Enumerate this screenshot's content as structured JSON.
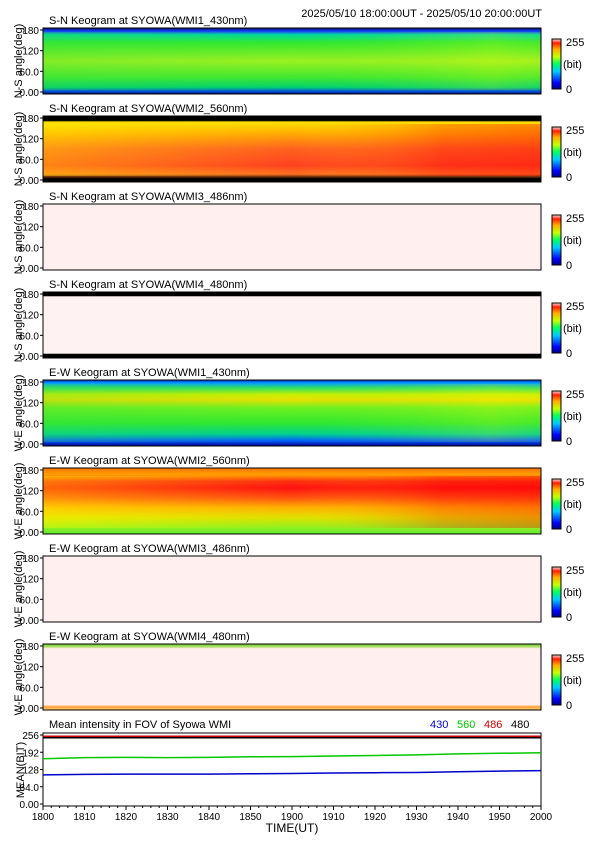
{
  "header": {
    "time_range": "2025/05/10 18:00:00UT - 2025/05/10 20:00:00UT"
  },
  "colorbar": {
    "max_label": "255",
    "unit_label": "(bit)",
    "min_label": "0"
  },
  "panels": [
    {
      "title": "S-N Keogram at SYOWA(WMI1_430nm)",
      "ylabel": "N-S angle(deg)",
      "ticks": [
        "180",
        "120",
        "60.0",
        "0.00"
      ],
      "variant": "g430"
    },
    {
      "title": "S-N Keogram at SYOWA(WMI2_560nm)",
      "ylabel": "N-S angle(deg)",
      "ticks": [
        "180",
        "120",
        "60.0",
        "0.00"
      ],
      "variant": "r560"
    },
    {
      "title": "S-N Keogram at SYOWA(WMI3_486nm)",
      "ylabel": "N-S angle(deg)",
      "ticks": [
        "180",
        "120",
        "60.0",
        "0.00"
      ],
      "variant": "pale"
    },
    {
      "title": "S-N Keogram at SYOWA(WMI4_480nm)",
      "ylabel": "N-S angle(deg)",
      "ticks": [
        "180",
        "120",
        "60.0",
        "0.00"
      ],
      "variant": "pale_black"
    },
    {
      "title": "E-W Keogram at SYOWA(WMI1_430nm)",
      "ylabel": "W-E angle(deg)",
      "ticks": [
        "180",
        "120",
        "60.0",
        "0.00"
      ],
      "variant": "g430ew"
    },
    {
      "title": "E-W Keogram at SYOWA(WMI2_560nm)",
      "ylabel": "W-E angle(deg)",
      "ticks": [
        "180",
        "120",
        "60.0",
        "0.00"
      ],
      "variant": "r560ew"
    },
    {
      "title": "E-W Keogram at SYOWA(WMI3_486nm)",
      "ylabel": "W-E angle(deg)",
      "ticks": [
        "180",
        "120",
        "60.0",
        "0.00"
      ],
      "variant": "pale"
    },
    {
      "title": "E-W Keogram at SYOWA(WMI4_480nm)",
      "ylabel": "W-E angle(deg)",
      "ticks": [
        "180",
        "120",
        "60.0",
        "0.00"
      ],
      "variant": "pale_green"
    }
  ],
  "chart_data": {
    "type": "line",
    "title": "Mean intensity in FOV of Syowa WMI",
    "xlabel": "TIME(UT)",
    "ylabel": "MEAN(BIT)",
    "xticks": [
      "1800",
      "1810",
      "1820",
      "1830",
      "1840",
      "1850",
      "1900",
      "1910",
      "1920",
      "1930",
      "1940",
      "1950",
      "2000"
    ],
    "yticks": [
      "256",
      "192",
      "128",
      "64.0",
      "0.00"
    ],
    "ylim": [
      0,
      256
    ],
    "legend": [
      {
        "label": "430",
        "color": "#0000cc"
      },
      {
        "label": "560",
        "color": "#00c800"
      },
      {
        "label": "486",
        "color": "#cc0000"
      },
      {
        "label": "480",
        "color": "#000000"
      }
    ],
    "x_minutes": [
      0,
      10,
      20,
      30,
      40,
      50,
      60,
      70,
      80,
      90,
      100,
      110,
      120
    ],
    "series": [
      {
        "name": "430",
        "color": "#0000cc",
        "values": [
          108,
          110,
          111,
          111,
          111,
          112,
          113,
          115,
          116,
          117,
          120,
          122,
          124
        ]
      },
      {
        "name": "560",
        "color": "#00c800",
        "values": [
          168,
          172,
          173,
          172,
          173,
          175,
          176,
          178,
          180,
          182,
          186,
          188,
          190
        ]
      },
      {
        "name": "486",
        "color": "#cc0000",
        "values": [
          251,
          251,
          251,
          251,
          251,
          251,
          251,
          251,
          251,
          251,
          251,
          251,
          251
        ]
      },
      {
        "name": "480",
        "color": "#000000",
        "values": [
          246,
          246,
          246,
          246,
          246,
          246,
          246,
          246,
          246,
          246,
          246,
          246,
          246
        ]
      }
    ]
  }
}
